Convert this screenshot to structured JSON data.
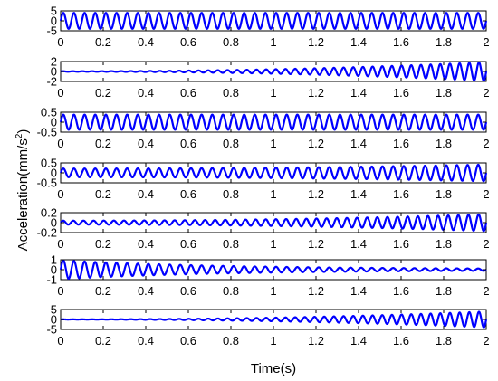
{
  "chart_data": {
    "type": "line",
    "xlabel": "Time(s)",
    "ylabel": {
      "text": "Acceleration(mm/s",
      "superscript": "2",
      "suffix": ")"
    },
    "xlim": [
      0,
      2
    ],
    "x_ticks": [
      "0",
      "0.2",
      "0.4",
      "0.6",
      "0.8",
      "1",
      "1.2",
      "1.4",
      "1.6",
      "1.8",
      "2"
    ],
    "line_color": "#0000ff",
    "panels": [
      {
        "ylim": [
          -5,
          5
        ],
        "y_ticks": [
          "5",
          "0",
          "-5"
        ],
        "y_tick_values": [
          5,
          0,
          -5
        ],
        "signal": {
          "shape": "constant",
          "amplitude_start": 4.0,
          "amplitude_end": 4.0,
          "cycles": 40
        }
      },
      {
        "ylim": [
          -2,
          2
        ],
        "y_ticks": [
          "2",
          "0",
          "-2"
        ],
        "y_tick_values": [
          2,
          0,
          -2
        ],
        "signal": {
          "shape": "growing",
          "amplitude_start": 0.05,
          "amplitude_end": 1.9,
          "cycles": 44
        }
      },
      {
        "ylim": [
          -0.5,
          0.5
        ],
        "y_ticks": [
          "0.5",
          "0",
          "-0.5"
        ],
        "y_tick_values": [
          0.5,
          0,
          -0.5
        ],
        "signal": {
          "shape": "constant",
          "amplitude_start": 0.38,
          "amplitude_end": 0.38,
          "cycles": 40
        }
      },
      {
        "ylim": [
          -0.5,
          0.5
        ],
        "y_ticks": [
          "0.5",
          "0",
          "-0.5"
        ],
        "y_tick_values": [
          0.5,
          0,
          -0.5
        ],
        "signal": {
          "shape": "growing",
          "amplitude_start": 0.22,
          "amplitude_end": 0.42,
          "cycles": 40
        }
      },
      {
        "ylim": [
          -0.2,
          0.2
        ],
        "y_ticks": [
          "0.2",
          "0",
          "-0.2"
        ],
        "y_tick_values": [
          0.2,
          0,
          -0.2
        ],
        "signal": {
          "shape": "growing",
          "amplitude_start": 0.04,
          "amplitude_end": 0.17,
          "cycles": 42
        }
      },
      {
        "ylim": [
          -1,
          1
        ],
        "y_ticks": [
          "1",
          "0",
          "-1"
        ],
        "y_tick_values": [
          1,
          0,
          -1
        ],
        "signal": {
          "shape": "decaying",
          "amplitude_start": 0.95,
          "amplitude_end": 0.05,
          "cycles": 40
        }
      },
      {
        "ylim": [
          -5,
          5
        ],
        "y_ticks": [
          "5",
          "0",
          "-5"
        ],
        "y_tick_values": [
          5,
          0,
          -5
        ],
        "signal": {
          "shape": "growing",
          "amplitude_start": 0.05,
          "amplitude_end": 4.0,
          "cycles": 44
        }
      }
    ]
  }
}
